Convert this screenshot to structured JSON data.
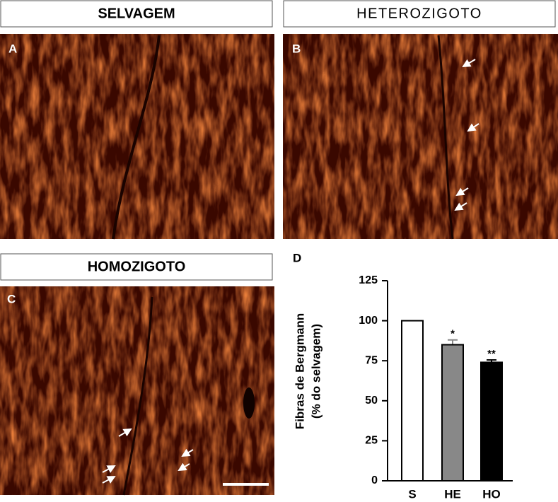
{
  "panels": [
    {
      "letter": "A",
      "title": "SELVAGEM"
    },
    {
      "letter": "B",
      "title": "HETEROZIGOTO"
    },
    {
      "letter": "C",
      "title": "HOMOZIGOTO"
    }
  ],
  "chart_data": {
    "type": "bar",
    "panel_letter": "D",
    "y_label": [
      "Fibras de Bergmann",
      "(% do selvagem)"
    ],
    "categories": [
      "S",
      "HE",
      "HO"
    ],
    "values": [
      100,
      85,
      74
    ],
    "errors": [
      0,
      3,
      1.5
    ],
    "colors": [
      "#ffffff",
      "#888888",
      "#000000"
    ],
    "annotations": [
      null,
      "*",
      "**"
    ],
    "ylim": [
      0,
      125
    ],
    "yticks": [
      0,
      25,
      50,
      75,
      100,
      125
    ]
  }
}
